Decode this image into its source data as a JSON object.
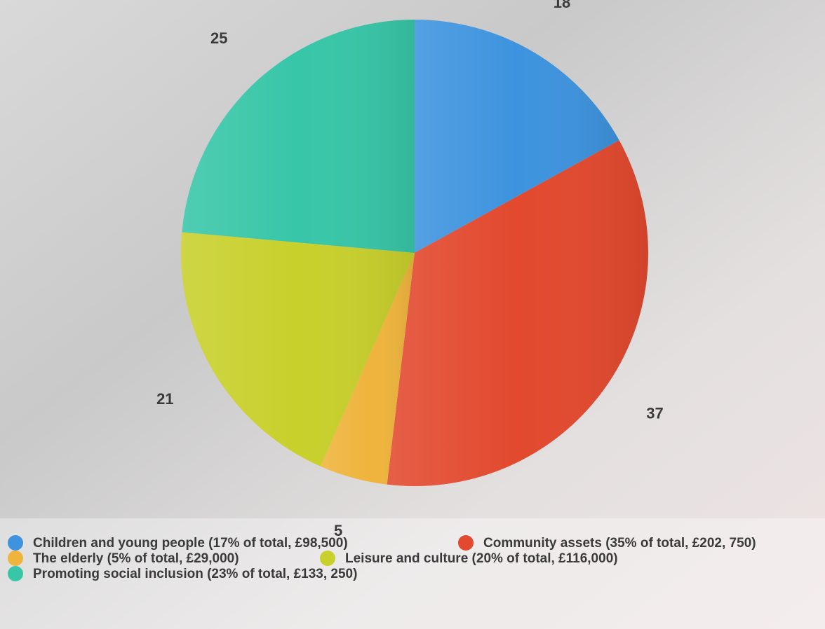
{
  "chart_data": {
    "type": "pie",
    "categories": [
      "Children and young people (17% of total, £98,500)",
      "Community assets (35% of total, £202, 750)",
      "The elderly (5% of total, £29,000)",
      "Leisure and culture (20% of total, £116,000)",
      "Promoting social inclusion (23% of total, £133, 250)"
    ],
    "values": [
      18,
      37,
      5,
      21,
      25
    ],
    "colors": [
      "#3d93de",
      "#e2492e",
      "#efb43c",
      "#c8d02c",
      "#38c6a8"
    ],
    "legend": "bottom"
  }
}
